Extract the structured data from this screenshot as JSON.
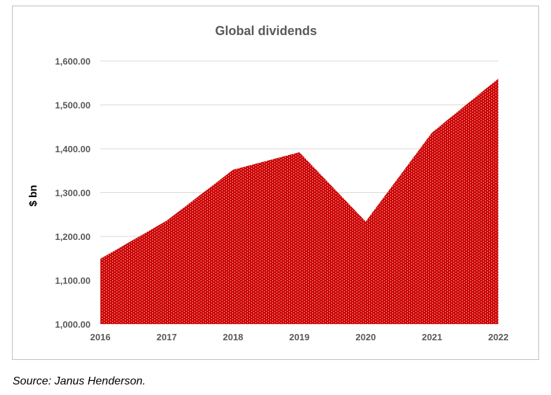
{
  "chart_data": {
    "type": "area",
    "title": "Global dividends",
    "xlabel": "",
    "ylabel": "$ bn",
    "x": [
      "2016",
      "2017",
      "2018",
      "2019",
      "2020",
      "2021",
      "2022"
    ],
    "series": [
      {
        "values": [
          1149,
          1236,
          1352,
          1392,
          1234,
          1437,
          1560
        ]
      }
    ],
    "ylim": [
      1000,
      1600
    ],
    "yticks": [
      "1,000.00",
      "1,100.00",
      "1,200.00",
      "1,300.00",
      "1,400.00",
      "1,500.00",
      "1,600.00"
    ],
    "ytick_values": [
      1000,
      1100,
      1200,
      1300,
      1400,
      1500,
      1600
    ],
    "grid": true,
    "legend": "none",
    "fill_color": "#cc0000",
    "fill_pattern": "dotted"
  },
  "source_note": "Source: Janus Henderson."
}
